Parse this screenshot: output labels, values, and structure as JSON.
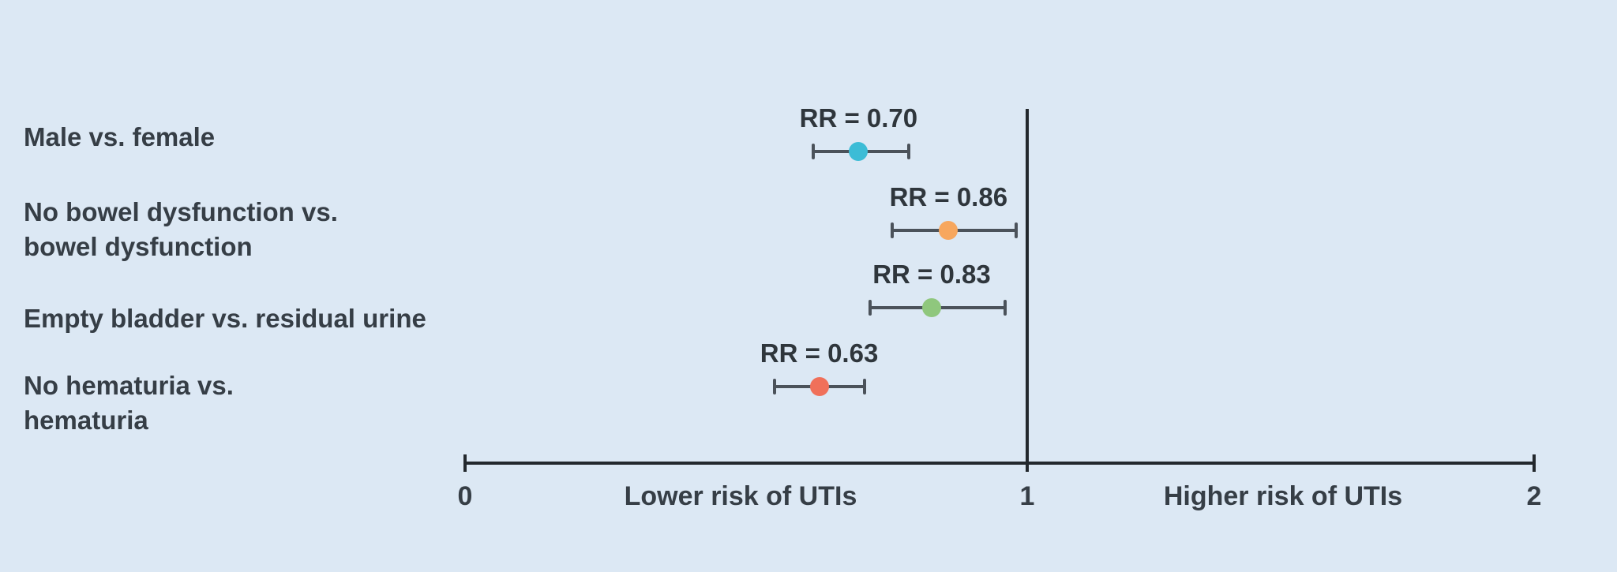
{
  "chart_data": {
    "type": "scatter",
    "subtype": "forest-plot",
    "title": "",
    "xlabel": "",
    "ylabel": "",
    "xlim": [
      0,
      2
    ],
    "x_tick_values": [
      0,
      1,
      2
    ],
    "x_tick_labels": [
      "0",
      "1",
      "2"
    ],
    "reference_line_x": 1,
    "axis_caption_left": "Lower risk of UTIs",
    "axis_caption_right": "Higher risk of UTIs",
    "legend": "none",
    "grid": "off",
    "rows": [
      {
        "category_lines": [
          "Male vs. female"
        ],
        "rr_label": "RR = 0.70",
        "rr": 0.7,
        "ci": [
          0.62,
          0.79
        ],
        "marker_color": "#3cbcd6"
      },
      {
        "category_lines": [
          "No bowel dysfunction vs.",
          "bowel dysfunction"
        ],
        "rr_label": "RR = 0.86",
        "rr": 0.86,
        "ci": [
          0.76,
          0.98
        ],
        "marker_color": "#f7a75e"
      },
      {
        "category_lines": [
          "Empty bladder vs. residual urine"
        ],
        "rr_label": "RR = 0.83",
        "rr": 0.83,
        "ci": [
          0.72,
          0.96
        ],
        "marker_color": "#8fc77d"
      },
      {
        "category_lines": [
          "No hematuria vs.",
          "hematuria"
        ],
        "rr_label": "RR = 0.63",
        "rr": 0.63,
        "ci": [
          0.55,
          0.71
        ],
        "marker_color": "#f0705a"
      }
    ],
    "colors": {
      "background": "#dce8f4",
      "text": "#363e46",
      "axis_line": "#23282d",
      "error_bar": "#4b525a"
    }
  }
}
